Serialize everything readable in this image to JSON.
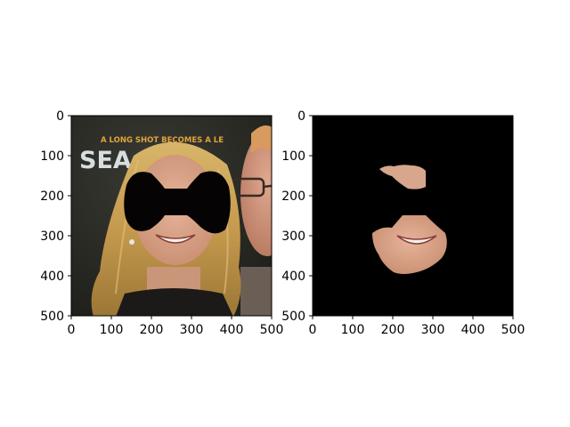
{
  "chart_data": [
    {
      "type": "image",
      "content": "photo of a smiling woman with long blonde hair; a black bow-tie-shaped mask covers her eyes; a man wearing glasses is partly visible at the right; poster background with yellow text",
      "background_text": "A LONG SHOT BECOMES A LE… / SEA…CU",
      "mask": "black bow-tie shape over the eyes",
      "xlim": [
        0,
        500
      ],
      "ylim": [
        500,
        0
      ],
      "xticks": [
        "0",
        "100",
        "200",
        "300",
        "400",
        "500"
      ],
      "yticks": [
        "0",
        "100",
        "200",
        "300",
        "400",
        "500"
      ],
      "title": "",
      "xlabel": "",
      "ylabel": ""
    },
    {
      "type": "image",
      "content": "same face on a black background: only the skin region (forehead, cheeks, smile, chin) is visible; eyes region masked black",
      "xlim": [
        0,
        500
      ],
      "ylim": [
        500,
        0
      ],
      "xticks": [
        "0",
        "100",
        "200",
        "300",
        "400",
        "500"
      ],
      "yticks": [
        "0",
        "100",
        "200",
        "300",
        "400",
        "500"
      ],
      "title": "",
      "xlabel": "",
      "ylabel": ""
    }
  ],
  "colors": {
    "background_dark": "#2a2a26",
    "hair": "#c9a35a",
    "skin": "#d9a487",
    "mask": "#050303",
    "poster_text": "#e0a43a",
    "poster_title": "#d8dde0"
  }
}
